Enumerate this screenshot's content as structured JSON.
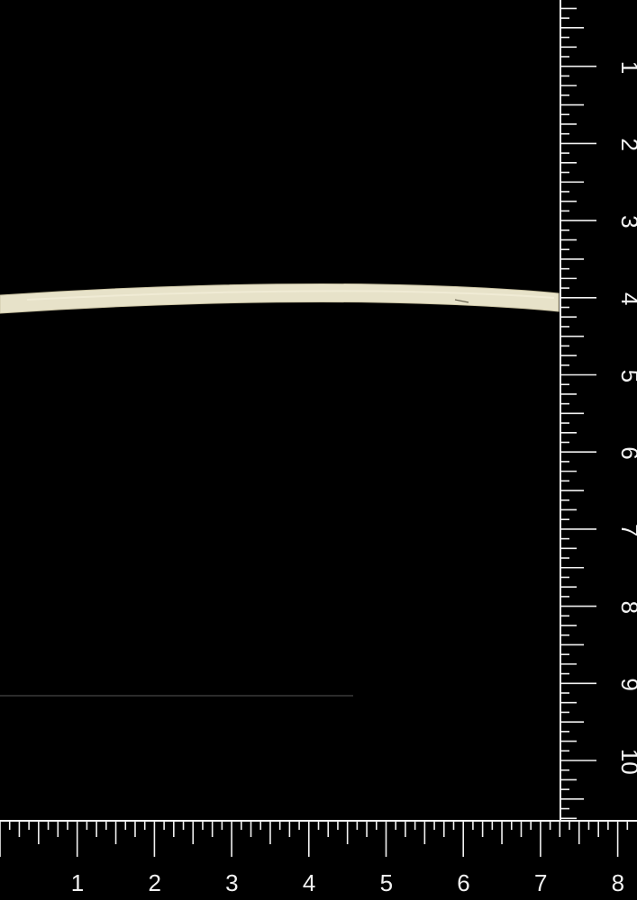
{
  "colors": {
    "background": "#000000",
    "ruler_ink": "#f2f2f2",
    "specimen": "#e7e2c9"
  },
  "vertical_ruler": {
    "labels": [
      "1",
      "2",
      "3",
      "4",
      "5",
      "6",
      "7",
      "8",
      "9",
      "10"
    ]
  },
  "horizontal_ruler": {
    "labels": [
      "1",
      "2",
      "3",
      "4",
      "5",
      "6",
      "7",
      "8"
    ]
  }
}
